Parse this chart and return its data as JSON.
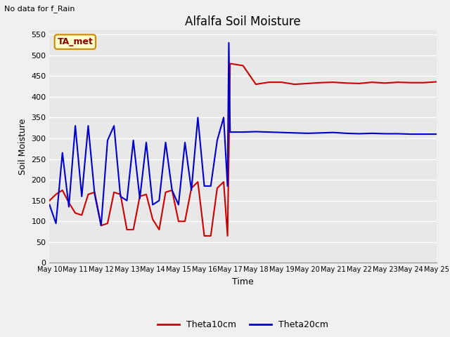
{
  "title": "Alfalfa Soil Moisture",
  "xlabel": "Time",
  "ylabel": "Soil Moisture",
  "annotation": "No data for f_Rain",
  "box_label": "TA_met",
  "legend_labels": [
    "Theta10cm",
    "Theta20cm"
  ],
  "legend_colors": [
    "#cc0000",
    "#0000cc"
  ],
  "ylim": [
    0,
    560
  ],
  "yticks": [
    0,
    50,
    100,
    150,
    200,
    250,
    300,
    350,
    400,
    450,
    500,
    550
  ],
  "fig_bg_color": "#f0f0f0",
  "plot_bg_color": "#e8e8e8",
  "grid_color": "#ffffff",
  "theta10_x": [
    0,
    0.25,
    0.5,
    0.75,
    1.0,
    1.25,
    1.5,
    1.75,
    2.0,
    2.25,
    2.5,
    2.75,
    3.0,
    3.25,
    3.5,
    3.75,
    4.0,
    4.25,
    4.5,
    4.75,
    5.0,
    5.25,
    5.5,
    5.75,
    6.0,
    6.25,
    6.5,
    6.75,
    6.9,
    6.95,
    7.0,
    7.5,
    8.0,
    8.5,
    9.0,
    9.5,
    10.0,
    10.5,
    11.0,
    11.5,
    12.0,
    12.5,
    13.0,
    13.5,
    14.0,
    14.5,
    15.0
  ],
  "theta10_y": [
    150,
    165,
    175,
    145,
    120,
    115,
    165,
    170,
    90,
    95,
    170,
    165,
    80,
    80,
    160,
    165,
    105,
    80,
    170,
    175,
    100,
    100,
    180,
    195,
    65,
    65,
    180,
    195,
    65,
    260,
    480,
    475,
    430,
    435,
    435,
    430,
    432,
    434,
    435,
    433,
    432,
    435,
    433,
    435,
    434,
    434,
    436
  ],
  "theta20_x": [
    0,
    0.25,
    0.5,
    0.75,
    1.0,
    1.25,
    1.5,
    1.75,
    2.0,
    2.25,
    2.5,
    2.75,
    3.0,
    3.25,
    3.5,
    3.75,
    4.0,
    4.25,
    4.5,
    4.75,
    5.0,
    5.25,
    5.5,
    5.75,
    6.0,
    6.25,
    6.5,
    6.75,
    6.9,
    6.95,
    7.0,
    7.5,
    8.0,
    8.5,
    9.0,
    9.5,
    10.0,
    10.5,
    11.0,
    11.5,
    12.0,
    12.5,
    13.0,
    13.5,
    14.0,
    14.5,
    15.0
  ],
  "theta20_y": [
    140,
    95,
    265,
    135,
    330,
    160,
    330,
    165,
    90,
    295,
    330,
    160,
    150,
    295,
    155,
    290,
    140,
    150,
    290,
    175,
    140,
    290,
    175,
    350,
    185,
    185,
    295,
    350,
    185,
    530,
    315,
    315,
    316,
    315,
    314,
    313,
    312,
    313,
    314,
    312,
    311,
    312,
    311,
    311,
    310,
    310,
    310
  ],
  "xmin": 0,
  "xmax": 15,
  "xtick_positions": [
    0,
    1,
    2,
    3,
    4,
    5,
    6,
    7,
    8,
    9,
    10,
    11,
    12,
    13,
    14,
    15
  ],
  "xtick_labels": [
    "May 10",
    "May 11",
    "May 12",
    "May 13",
    "May 14",
    "May 15",
    "May 16",
    "May 17",
    "May 18",
    "May 19",
    "May 20",
    "May 21",
    "May 22",
    "May 23",
    "May 24",
    "May 25"
  ]
}
